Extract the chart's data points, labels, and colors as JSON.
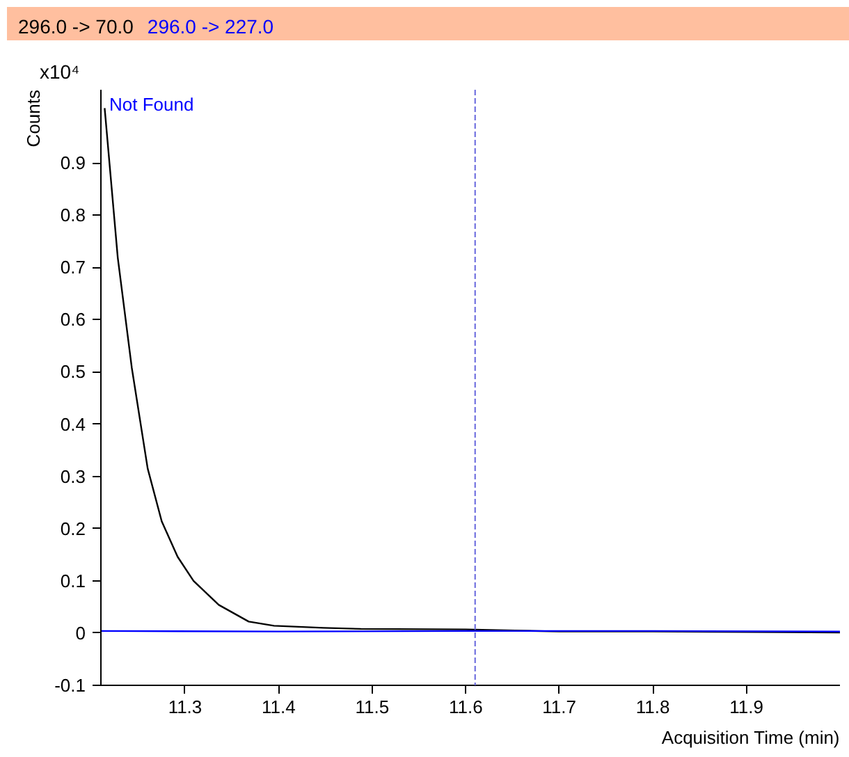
{
  "chart_data": {
    "type": "line",
    "xlabel": "Acquisition Time (min)",
    "ylabel": "Counts",
    "annotations": [
      "x10⁴",
      "Not Found"
    ],
    "series": [
      {
        "name": "296.0 -> 70.0",
        "color": "#000000",
        "x": [
          11.214,
          11.228,
          11.243,
          11.26,
          11.275,
          11.292,
          11.309,
          11.336,
          11.368,
          11.395,
          11.448,
          11.488,
          11.6,
          11.7,
          11.8,
          11.9,
          12.0
        ],
        "values": [
          1.005,
          0.719,
          0.508,
          0.315,
          0.214,
          0.146,
          0.1,
          0.054,
          0.022,
          0.014,
          0.01,
          0.008,
          0.007,
          0.003,
          0.003,
          0.002,
          0.001
        ]
      },
      {
        "name": "296.0 -> 227.0",
        "color": "#0000ff",
        "x": [
          11.21,
          11.4,
          11.6,
          11.8,
          12.0
        ],
        "values": [
          0.004,
          0.003,
          0.004,
          0.004,
          0.003
        ]
      }
    ],
    "xlim": [
      11.21,
      12.0
    ],
    "xticks": [
      11.3,
      11.4,
      11.5,
      11.6,
      11.7,
      11.8,
      11.9
    ],
    "ylim": [
      -0.1,
      1.04
    ],
    "yticks": [
      -0.1,
      0,
      0.1,
      0.2,
      0.3,
      0.4,
      0.5,
      0.6,
      0.7,
      0.8,
      0.9
    ],
    "ref_lines": [
      {
        "axis": "x",
        "value": 11.61,
        "color": "#6666dd",
        "line_style": "dashed"
      }
    ],
    "legend": "top",
    "grid": false,
    "marker": "none",
    "line_style": "solid"
  }
}
